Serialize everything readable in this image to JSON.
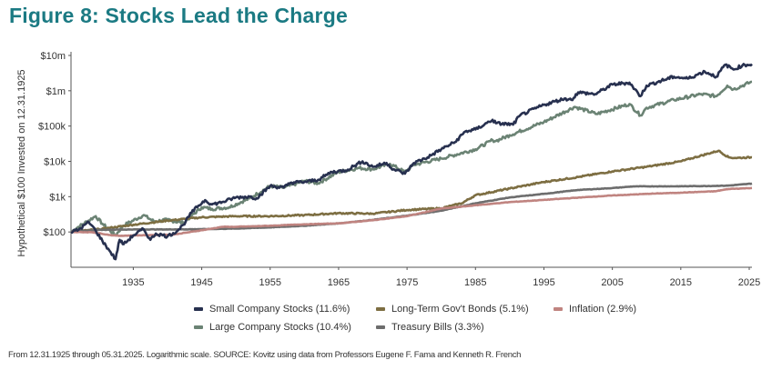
{
  "page": {
    "title": "Figure 8: Stocks Lead the Charge",
    "source": "From 12.31.1925 through 05.31.2025. Logarithmic scale. SOURCE: Kovitz using data from Professors Eugene F. Fama and Kenneth R. French"
  },
  "chart_data": {
    "type": "line",
    "title": "Figure 8: Stocks Lead the Charge",
    "ylabel": "Hypothetical $100 Invested on 12.31.1925",
    "xlabel": "",
    "yscale": "log",
    "ylim": [
      10,
      10000000
    ],
    "xlim": [
      1925.9,
      2025.4
    ],
    "x_ticks": [
      1935,
      1945,
      1955,
      1965,
      1975,
      1985,
      1995,
      2005,
      2015,
      2025
    ],
    "x_tick_labels": [
      "1935",
      "1945",
      "1955",
      "1965",
      "1975",
      "1985",
      "1995",
      "2005",
      "2015",
      "2025"
    ],
    "y_ticks": [
      100,
      1000,
      10000,
      100000,
      1000000,
      10000000
    ],
    "y_tick_labels": [
      "$100",
      "$1k",
      "$10k",
      "$100k",
      "$1m",
      "$10m"
    ],
    "grid": false,
    "legend_position": "bottom",
    "series": [
      {
        "name": "Small Company Stocks (11.6%)",
        "color": "#27304f",
        "x": [
          1925.9,
          1927,
          1928.5,
          1929.5,
          1930.5,
          1931.5,
          1932.4,
          1933,
          1933.6,
          1935,
          1936.5,
          1937.5,
          1938.3,
          1940,
          1941.5,
          1942.3,
          1943.5,
          1944.5,
          1945.5,
          1946.5,
          1948,
          1950,
          1952,
          1953,
          1955,
          1957,
          1958,
          1960,
          1962,
          1964,
          1966,
          1968.5,
          1970,
          1972,
          1973,
          1974.7,
          1976,
          1978,
          1980,
          1982,
          1983.5,
          1985,
          1987.5,
          1988,
          1990.5,
          1991.5,
          1995,
          1998,
          1999,
          2000,
          2002.5,
          2005,
          2007.5,
          2009.1,
          2010,
          2014,
          2016,
          2018.5,
          2020.2,
          2021.5,
          2022.7,
          2024,
          2025.4
        ],
        "values": [
          100,
          115,
          190,
          110,
          55,
          30,
          17,
          60,
          45,
          80,
          120,
          60,
          90,
          75,
          110,
          160,
          350,
          550,
          800,
          600,
          700,
          950,
          1000,
          900,
          2000,
          1800,
          2500,
          2600,
          3000,
          5000,
          5500,
          10000,
          7000,
          9000,
          6000,
          4500,
          9000,
          13000,
          22000,
          35000,
          70000,
          80000,
          150000,
          120000,
          110000,
          200000,
          400000,
          600000,
          550000,
          900000,
          800000,
          1500000,
          1700000,
          700000,
          1400000,
          2500000,
          2200000,
          3500000,
          2500000,
          5500000,
          4000000,
          5200000,
          5700000
        ]
      },
      {
        "name": "Long-Term Gov't Bonds (5.1%)",
        "color": "#7d6e42",
        "x": [
          1925.9,
          1930,
          1935,
          1940,
          1945,
          1950,
          1955,
          1960,
          1965,
          1970,
          1975,
          1980,
          1983,
          1985,
          1990,
          1995,
          2000,
          2005,
          2010,
          2015,
          2020.5,
          2022,
          2023,
          2025.4
        ],
        "values": [
          100,
          120,
          160,
          210,
          260,
          280,
          280,
          300,
          340,
          330,
          420,
          470,
          650,
          1100,
          1700,
          2600,
          3600,
          5200,
          7000,
          10000,
          20000,
          13000,
          12500,
          13000
        ]
      },
      {
        "name": "Inflation (2.9%)",
        "color": "#c08480",
        "x": [
          1925.9,
          1929,
          1932,
          1933,
          1941,
          1946,
          1948,
          1950,
          1955,
          1960,
          1965,
          1970,
          1975,
          1980,
          1985,
          1990,
          1995,
          2000,
          2005,
          2010,
          2015,
          2020,
          2022,
          2025.4
        ],
        "values": [
          100,
          98,
          80,
          78,
          85,
          120,
          140,
          140,
          150,
          165,
          175,
          215,
          280,
          460,
          570,
          700,
          810,
          940,
          1080,
          1200,
          1300,
          1420,
          1650,
          1760
        ]
      },
      {
        "name": "Large Company Stocks (10.4%)",
        "color": "#6b8374",
        "x": [
          1925.9,
          1927,
          1929.5,
          1930.5,
          1932.4,
          1933.5,
          1936.5,
          1938,
          1940,
          1942.3,
          1945,
          1946.5,
          1949,
          1952,
          1955,
          1957,
          1960,
          1962,
          1965,
          1968,
          1970,
          1972.5,
          1974.7,
          1976,
          1980,
          1985,
          1987.5,
          1988,
          1990,
          1995,
          1999.5,
          2002.7,
          2007.5,
          2009.1,
          2010,
          2014,
          2018,
          2020.2,
          2021.8,
          2022.7,
          2025.4
        ],
        "values": [
          100,
          140,
          280,
          170,
          80,
          150,
          300,
          200,
          220,
          180,
          500,
          450,
          500,
          900,
          2000,
          1800,
          2800,
          2400,
          5000,
          6500,
          6000,
          8500,
          5000,
          8000,
          12000,
          22000,
          40000,
          38000,
          55000,
          130000,
          350000,
          220000,
          420000,
          200000,
          330000,
          550000,
          800000,
          700000,
          1400000,
          1100000,
          1800000
        ]
      },
      {
        "name": "Treasury Bills (3.3%)",
        "color": "#6d6d6d",
        "x": [
          1925.9,
          1930,
          1935,
          1940,
          1945,
          1950,
          1955,
          1960,
          1965,
          1970,
          1975,
          1980,
          1985,
          1990,
          1995,
          2000,
          2005,
          2008,
          2010,
          2015,
          2020,
          2022,
          2025.4
        ],
        "values": [
          100,
          115,
          118,
          118,
          120,
          125,
          135,
          150,
          175,
          220,
          290,
          400,
          650,
          950,
          1200,
          1550,
          1750,
          1950,
          1960,
          1970,
          2020,
          2060,
          2350
        ]
      }
    ]
  }
}
